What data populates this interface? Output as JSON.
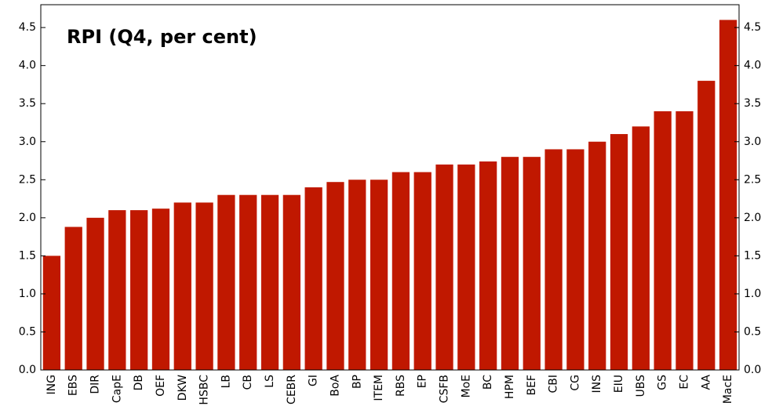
{
  "chart_data": {
    "type": "bar",
    "title": "RPI (Q4, per cent)",
    "categories": [
      "ING",
      "EBS",
      "DIR",
      "CapE",
      "DB",
      "OEF",
      "DKW",
      "HSBC",
      "LB",
      "CB",
      "LS",
      "CEBR",
      "GI",
      "BoA",
      "BP",
      "ITEM",
      "RBS",
      "EP",
      "CSFB",
      "MoE",
      "BC",
      "HPM",
      "BEF",
      "CBI",
      "CG",
      "INS",
      "EIU",
      "UBS",
      "GS",
      "EC",
      "AA",
      "MacE"
    ],
    "values": [
      1.5,
      1.88,
      2.0,
      2.1,
      2.1,
      2.12,
      2.2,
      2.2,
      2.3,
      2.3,
      2.3,
      2.3,
      2.4,
      2.47,
      2.5,
      2.5,
      2.6,
      2.6,
      2.7,
      2.7,
      2.74,
      2.8,
      2.8,
      2.9,
      2.9,
      3.0,
      3.1,
      3.2,
      3.4,
      3.4,
      3.8,
      4.6
    ],
    "color": "#c01800",
    "ylim": [
      0,
      4.8
    ],
    "yticks": [
      {
        "value": 0,
        "label": "0.0"
      },
      0.5,
      {
        "value": 1,
        "label": "1.0"
      },
      1.5,
      {
        "value": 2,
        "label": "2.0"
      },
      2.5,
      {
        "value": 3,
        "label": "3.0"
      },
      3.5,
      {
        "value": 4,
        "label": "4.0"
      },
      4.5
    ]
  }
}
